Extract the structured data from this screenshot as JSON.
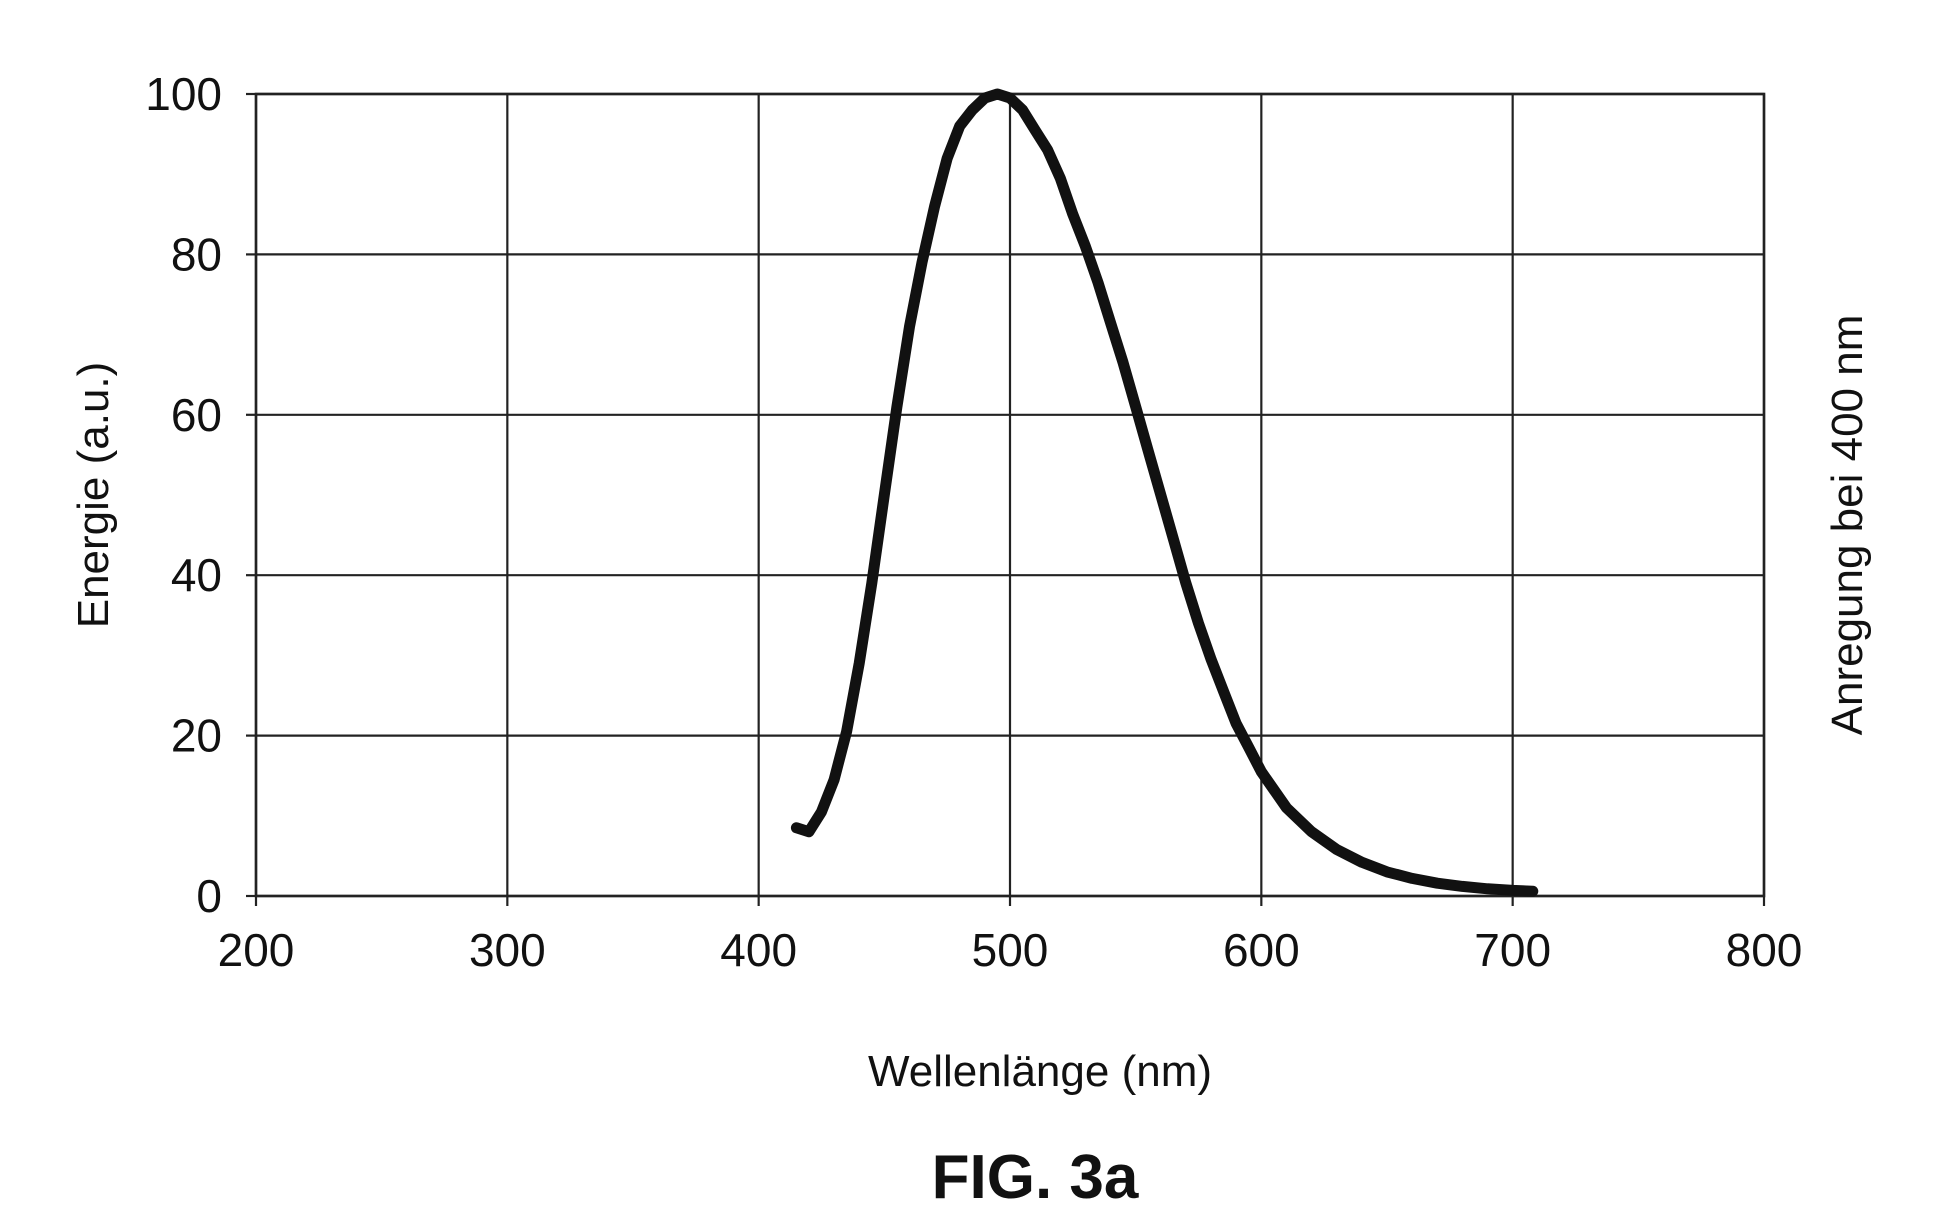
{
  "figure_label": "FIG. 3a",
  "chart_data": {
    "type": "line",
    "xlabel": "Wellenlänge (nm)",
    "ylabel": "Energie (a.u.)",
    "annotation": "Anregung bei 400 nm",
    "xlim": [
      200,
      800
    ],
    "ylim": [
      0,
      100
    ],
    "xticks": [
      200,
      300,
      400,
      500,
      600,
      700,
      800
    ],
    "yticks": [
      0,
      20,
      40,
      60,
      80,
      100
    ],
    "grid": true,
    "series": [
      {
        "x": [
          415,
          420,
          425,
          430,
          435,
          440,
          445,
          450,
          455,
          460,
          465,
          470,
          475,
          480,
          485,
          490,
          495,
          500,
          505,
          510,
          515,
          520,
          525,
          530,
          535,
          540,
          545,
          550,
          555,
          560,
          565,
          570,
          575,
          580,
          585,
          590,
          595,
          600,
          610,
          620,
          630,
          640,
          650,
          660,
          670,
          680,
          690,
          700,
          708
        ],
        "y": [
          8.5,
          8.0,
          10.5,
          14.5,
          20.5,
          29,
          39,
          50,
          61,
          71,
          79,
          86,
          92,
          96,
          98,
          99.5,
          100,
          99.5,
          98,
          95.5,
          93,
          89.5,
          85,
          81,
          76.5,
          71.5,
          66.5,
          61,
          55.5,
          50,
          44.5,
          39,
          34,
          29.5,
          25.5,
          21.5,
          18.5,
          15.5,
          11,
          8,
          5.8,
          4.2,
          3.0,
          2.2,
          1.6,
          1.2,
          0.9,
          0.7,
          0.6
        ]
      }
    ]
  }
}
